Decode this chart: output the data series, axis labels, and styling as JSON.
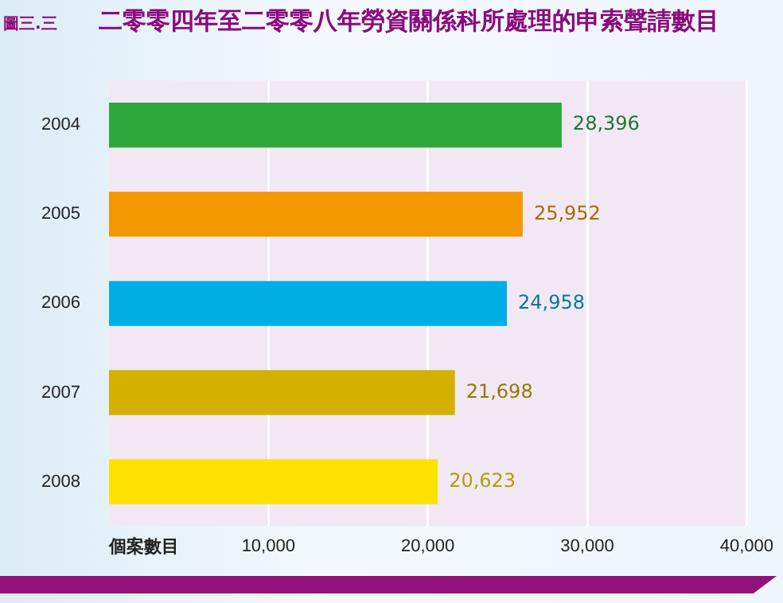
{
  "chart_data": {
    "type": "bar",
    "orientation": "horizontal",
    "title": "二零零四年至二零零八年勞資關係科所處理的申索聲請數目",
    "xlabel": "個案數目",
    "annotations": [
      "圖三.三"
    ],
    "categories": [
      "2004",
      "2005",
      "2006",
      "2007",
      "2008"
    ],
    "values": [
      28396,
      25952,
      24958,
      21698,
      20623
    ],
    "colors": [
      "#2ca83c",
      "#f39800",
      "#00aee6",
      "#d4b000",
      "#ffe100"
    ],
    "value_labels": [
      "28,396",
      "25,952",
      "24,958",
      "21,698",
      "20,623"
    ],
    "xlim": [
      0,
      40000
    ],
    "xticks": [
      {
        "value": 10000,
        "label": "10,000"
      },
      {
        "value": 20000,
        "label": "20,000"
      },
      {
        "value": 30000,
        "label": "30,000"
      },
      {
        "value": 40000,
        "label": "40,000"
      }
    ],
    "grid": "x",
    "legend": false
  }
}
